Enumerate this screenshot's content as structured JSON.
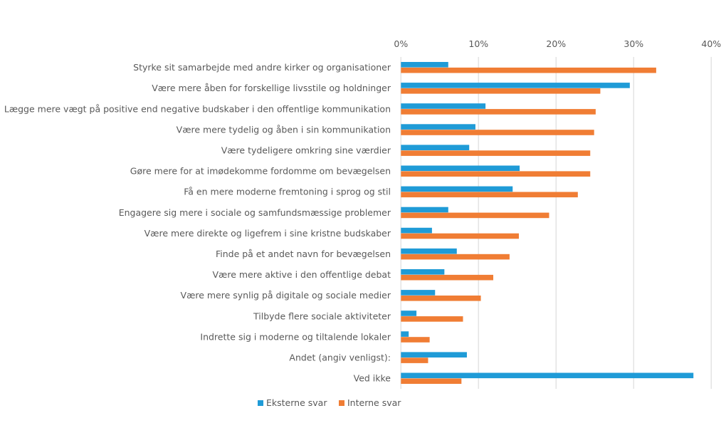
{
  "chart_data": {
    "type": "bar",
    "orientation": "horizontal",
    "title": "",
    "xlabel": "",
    "ylabel": "",
    "xlim": [
      0,
      40
    ],
    "x_ticks": [
      "0%",
      "10%",
      "20%",
      "30%",
      "40%"
    ],
    "x_tick_values": [
      0,
      10,
      20,
      30,
      40
    ],
    "x_axis_position": "top",
    "grid": true,
    "legend_position": "bottom",
    "categories": [
      "Styrke sit samarbejde med andre kirker og organisationer",
      "Være mere åben for forskellige livsstile og holdninger",
      "Lægge mere vægt på positive end negative budskaber i den offentlige kommunikation",
      "Være mere tydelig og åben i sin kommunikation",
      "Være tydeligere omkring sine værdier",
      "Gøre mere for at imødekomme fordomme om bevægelsen",
      "Få en mere moderne fremtoning i sprog og stil",
      "Engagere sig mere i sociale og samfundsmæssige problemer",
      "Være mere direkte og ligefrem i sine kristne budskaber",
      "Finde på et andet navn for bevægelsen",
      "Være mere aktive i den offentlige debat",
      "Være mere synlig på digitale og sociale medier",
      "Tilbyde flere sociale aktiviteter",
      "Indrette sig i moderne og tiltalende lokaler",
      "Andet (angiv venligst):",
      "Ved ikke"
    ],
    "series": [
      {
        "name": "Eksterne svar",
        "color": "#1f9bd7",
        "values": [
          6.1,
          29.5,
          10.9,
          9.6,
          8.8,
          15.3,
          14.4,
          6.1,
          4.0,
          7.2,
          5.6,
          4.4,
          2.0,
          1.0,
          8.5,
          37.7
        ]
      },
      {
        "name": "Interne svar",
        "color": "#f07d34",
        "values": [
          32.9,
          25.7,
          25.1,
          24.9,
          24.4,
          24.4,
          22.8,
          19.1,
          15.2,
          14.0,
          11.9,
          10.3,
          8.0,
          3.7,
          3.5,
          7.8
        ]
      }
    ],
    "gridline_color": "#e3e3e3"
  }
}
